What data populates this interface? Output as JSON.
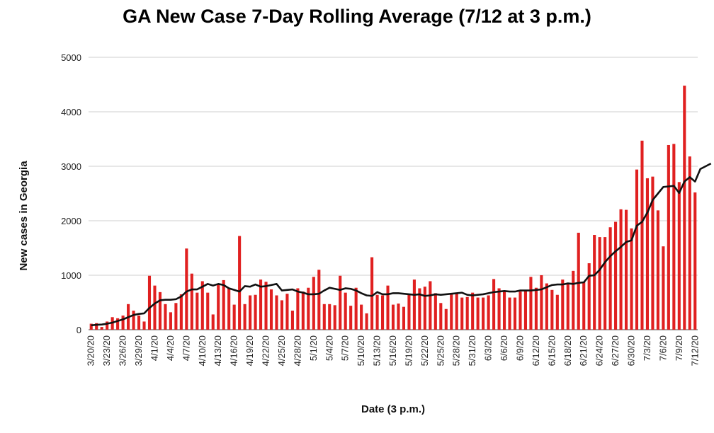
{
  "chart_data": {
    "type": "bar",
    "title": "GA New Case 7-Day Rolling Average (7/12 at 3 p.m.)",
    "xlabel": "Date (3 p.m.)",
    "ylabel": "New cases in Georgia",
    "ylim": [
      0,
      5000
    ],
    "yticks": [
      0,
      1000,
      2000,
      3000,
      4000,
      5000
    ],
    "grid": true,
    "legend": "none",
    "bar_color": "#e02020",
    "line_color": "#111111",
    "start_date": "3/20/20",
    "xtick_labels": [
      "3/20/20",
      "3/23/20",
      "3/26/20",
      "3/29/20",
      "4/1/20",
      "4/4/20",
      "4/7/20",
      "4/10/20",
      "4/13/20",
      "4/16/20",
      "4/19/20",
      "4/22/20",
      "4/25/20",
      "4/28/20",
      "5/1/20",
      "5/4/20",
      "5/7/20",
      "5/10/20",
      "5/13/20",
      "5/16/20",
      "5/19/20",
      "5/22/20",
      "5/25/20",
      "5/28/20",
      "5/31/20",
      "6/3/20",
      "6/6/20",
      "6/9/20",
      "6/12/20",
      "6/15/20",
      "6/18/20",
      "6/21/20",
      "6/24/20",
      "6/27/20",
      "6/30/20",
      "7/3/20",
      "7/6/20",
      "7/9/20",
      "7/12/20"
    ],
    "series": [
      {
        "type": "bar",
        "values": [
          110,
          120,
          50,
          150,
          230,
          210,
          260,
          470,
          350,
          260,
          150,
          990,
          810,
          690,
          470,
          320,
          490,
          650,
          1490,
          1030,
          680,
          890,
          680,
          280,
          830,
          910,
          760,
          460,
          1720,
          470,
          630,
          640,
          920,
          880,
          740,
          630,
          540,
          660,
          350,
          760,
          700,
          770,
          970,
          1100,
          470,
          470,
          450,
          990,
          680,
          440,
          770,
          460,
          300,
          1330,
          640,
          630,
          810,
          460,
          480,
          420,
          640,
          920,
          760,
          790,
          890,
          670,
          490,
          380,
          670,
          680,
          590,
          600,
          680,
          590,
          590,
          630,
          930,
          760,
          700,
          590,
          590,
          700,
          720,
          970,
          770,
          1000,
          850,
          730,
          640,
          920,
          860,
          1080,
          1780,
          870,
          1220,
          1740,
          1700,
          1700,
          1880,
          1980,
          2210,
          2200,
          1860,
          2940,
          3470,
          2780,
          2810,
          2190,
          1530,
          3390,
          3410,
          2710,
          4480,
          3180,
          2520
        ]
      },
      {
        "type": "line",
        "values": [
          80,
          90,
          95,
          110,
          130,
          160,
          190,
          230,
          270,
          290,
          300,
          400,
          480,
          540,
          550,
          550,
          560,
          610,
          700,
          740,
          740,
          790,
          840,
          810,
          840,
          820,
          760,
          730,
          700,
          800,
          790,
          830,
          790,
          800,
          820,
          840,
          720,
          730,
          740,
          700,
          680,
          650,
          650,
          660,
          720,
          770,
          750,
          730,
          760,
          750,
          720,
          670,
          630,
          620,
          690,
          650,
          650,
          670,
          670,
          660,
          650,
          640,
          650,
          620,
          630,
          650,
          640,
          650,
          660,
          670,
          680,
          640,
          630,
          640,
          650,
          670,
          690,
          700,
          710,
          700,
          700,
          720,
          720,
          720,
          730,
          740,
          780,
          820,
          830,
          830,
          850,
          840,
          860,
          870,
          990,
          1000,
          1100,
          1240,
          1350,
          1440,
          1520,
          1610,
          1640,
          1910,
          1980,
          2150,
          2380,
          2500,
          2620,
          2630,
          2640,
          2510,
          2720,
          2800,
          2720,
          2950,
          3000,
          3050
        ]
      }
    ]
  }
}
